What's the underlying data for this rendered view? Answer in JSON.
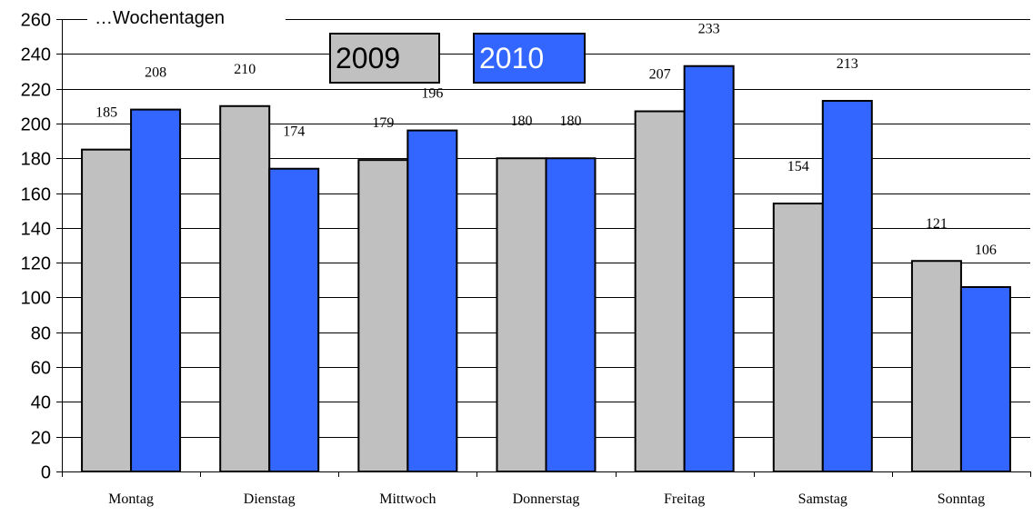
{
  "chart_data": {
    "type": "bar",
    "title": "…Wochentagen",
    "categories": [
      "Montag",
      "Dienstag",
      "Mittwoch",
      "Donnerstag",
      "Freitag",
      "Samstag",
      "Sonntag"
    ],
    "series": [
      {
        "name": "2009",
        "color": "#c0c0c0",
        "values": [
          185,
          210,
          179,
          180,
          207,
          154,
          121
        ]
      },
      {
        "name": "2010",
        "color": "#3366ff",
        "values": [
          208,
          174,
          196,
          180,
          233,
          213,
          106
        ]
      }
    ],
    "ylim": [
      0,
      260
    ],
    "yticks": [
      0,
      20,
      40,
      60,
      80,
      100,
      120,
      140,
      160,
      180,
      200,
      220,
      240,
      260
    ],
    "xlabel": "",
    "ylabel": "",
    "grid": true,
    "legend_position": "top-center"
  }
}
